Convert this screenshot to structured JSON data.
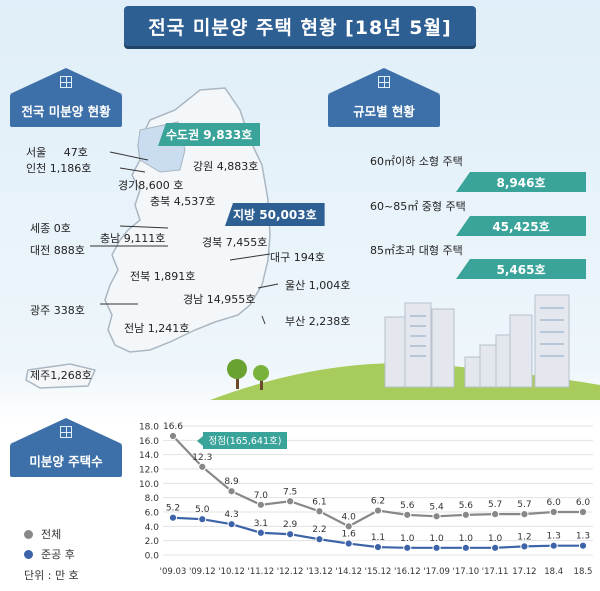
{
  "title": "전국 미분양 주택 현황 [18년 5월]",
  "sections": {
    "national": "전국 미분양 현황",
    "by_size": "규모별 현황",
    "count": "미분양 주택수"
  },
  "map": {
    "metro_badge": "수도권 9,833호",
    "local_badge": "지방 50,003호",
    "regions": [
      {
        "label": "서울",
        "value": "47호"
      },
      {
        "label": "인천",
        "value": "1,186호"
      },
      {
        "label": "경기",
        "value": "8,600 호"
      },
      {
        "label": "강원",
        "value": "4,883호"
      },
      {
        "label": "충북",
        "value": "4,537호"
      },
      {
        "label": "세종",
        "value": "0호"
      },
      {
        "label": "충남",
        "value": "9,111호"
      },
      {
        "label": "대전",
        "value": "888호"
      },
      {
        "label": "경북",
        "value": "7,455호"
      },
      {
        "label": "대구",
        "value": "194호"
      },
      {
        "label": "전북",
        "value": "1,891호"
      },
      {
        "label": "울산",
        "value": "1,004호"
      },
      {
        "label": "경남",
        "value": "14,955호"
      },
      {
        "label": "광주",
        "value": "338호"
      },
      {
        "label": "부산",
        "value": "2,238호"
      },
      {
        "label": "전남",
        "value": "1,241호"
      },
      {
        "label": "제주",
        "value": "1,268호"
      }
    ]
  },
  "size": {
    "items": [
      {
        "label": "60㎡이하 소형 주택",
        "value": "8,946호"
      },
      {
        "label": "60~85㎡ 중형 주택",
        "value": "45,425호"
      },
      {
        "label": "85㎡초과 대형 주택",
        "value": "5,465호"
      }
    ]
  },
  "chart_data": {
    "type": "line",
    "x": [
      "'09.03",
      "'09.12",
      "'10.12",
      "'11.12",
      "'12.12",
      "'13.12",
      "'14.12",
      "'15.12",
      "'16.12",
      "'17.09",
      "'17.10",
      "'17.11",
      "17.12",
      "18.4",
      "18.5"
    ],
    "series": [
      {
        "name": "전체",
        "values": [
          16.6,
          12.3,
          8.9,
          7.0,
          7.5,
          6.1,
          4.0,
          6.2,
          5.6,
          5.4,
          5.6,
          5.7,
          5.7,
          6.0,
          6.0
        ],
        "color": "#888888"
      },
      {
        "name": "준공 후",
        "values": [
          5.2,
          5.0,
          4.3,
          3.1,
          2.9,
          2.2,
          1.6,
          1.1,
          1.0,
          1.0,
          1.0,
          1.0,
          1.2,
          1.3,
          1.3
        ],
        "color": "#3d63a8"
      }
    ],
    "ylim": [
      0,
      18
    ],
    "yticks": [
      "0.0",
      "2.0",
      "4.0",
      "6.0",
      "8.0",
      "10.0",
      "12.0",
      "14.0",
      "16.0",
      "18.0"
    ],
    "grid": true,
    "legend": "bottom-left",
    "peak_annotation": "정점(165,641호)",
    "unit_label": "단위 : 만 호"
  }
}
